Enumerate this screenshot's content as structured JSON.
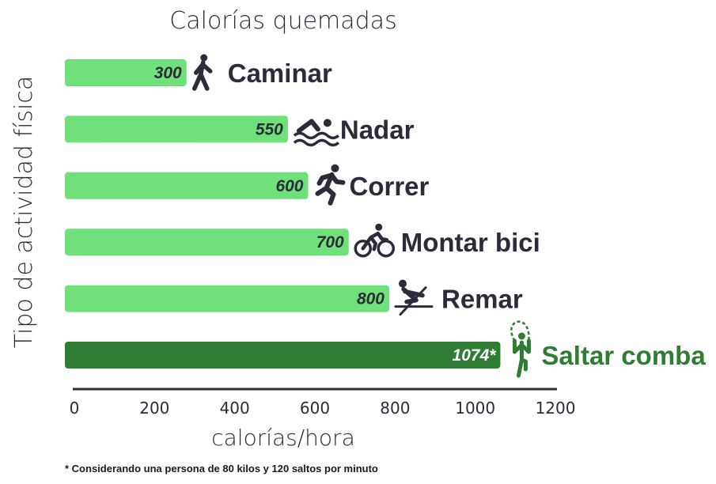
{
  "chart_data": {
    "type": "bar",
    "orientation": "horizontal",
    "title": "Calorías quemadas",
    "xlabel": "calorías/hora",
    "ylabel": "Tipo de actividad física",
    "categories": [
      "Caminar",
      "Nadar",
      "Correr",
      "Montar bici",
      "Remar",
      "Saltar comba"
    ],
    "values": [
      300,
      550,
      600,
      700,
      800,
      1074
    ],
    "value_labels": [
      "300",
      "550",
      "600",
      "700",
      "800",
      "1074*"
    ],
    "icons": [
      "walking-icon",
      "swimming-icon",
      "running-icon",
      "cycling-icon",
      "rowing-icon",
      "jump-rope-icon"
    ],
    "highlight_index": 5,
    "xlim": [
      0,
      1200
    ],
    "xticks": [
      0,
      200,
      400,
      600,
      800,
      1000,
      1200
    ],
    "grid": false,
    "colors": {
      "bar": "#6fe07a",
      "highlight": "#2e7d32",
      "text": "#2b2b3a",
      "axis": "#2b2b3a"
    },
    "footnote": "* Considerando una persona de 80 kilos y 120 saltos por minuto"
  }
}
